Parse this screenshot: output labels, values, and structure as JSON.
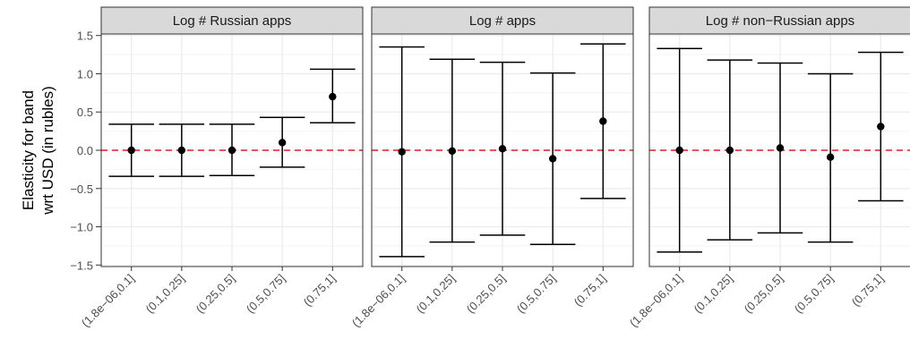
{
  "chart_data": {
    "type": "errorbar",
    "ylabel_lines": [
      "Elasticity for band",
      "wrt USD (in rubles)"
    ],
    "ylim": [
      -1.52,
      1.52
    ],
    "yticks": [
      -1.5,
      -1.0,
      -0.5,
      0.0,
      0.5,
      1.0,
      1.5
    ],
    "ytick_labels": [
      "−1.5",
      "−1.0",
      "−0.5",
      "0.0",
      "0.5",
      "1.0",
      "1.5"
    ],
    "categories": [
      "(1.8e−06,0.1]",
      "(0.1,0.25]",
      "(0.25,0.5]",
      "(0.5,0.75]",
      "(0.75,1]"
    ],
    "reference_line": {
      "y": 0,
      "color": "#e41a1c",
      "style": "dashed"
    },
    "grid": true,
    "panels": [
      {
        "title": "Log # Russian apps",
        "estimates": [
          0.0,
          0.0,
          0.0,
          0.1,
          0.7
        ],
        "lower": [
          -0.34,
          -0.34,
          -0.33,
          -0.22,
          0.36
        ],
        "upper": [
          0.34,
          0.34,
          0.34,
          0.43,
          1.06
        ]
      },
      {
        "title": "Log # apps",
        "estimates": [
          -0.02,
          -0.01,
          0.02,
          -0.11,
          0.38
        ],
        "lower": [
          -1.39,
          -1.2,
          -1.11,
          -1.23,
          -0.63
        ],
        "upper": [
          1.35,
          1.19,
          1.15,
          1.01,
          1.39
        ]
      },
      {
        "title": "Log # non−Russian apps",
        "estimates": [
          0.0,
          0.0,
          0.03,
          -0.09,
          0.31
        ],
        "lower": [
          -1.33,
          -1.17,
          -1.08,
          -1.2,
          -0.66
        ],
        "upper": [
          1.33,
          1.18,
          1.14,
          1.0,
          1.28
        ]
      }
    ]
  },
  "colors": {
    "panel_background": "#ebebeb",
    "strip_background": "#d9d9d9",
    "gridline": "#ebebeb",
    "border": "#333333",
    "point": "#000000",
    "reference_line": "#e41a1c"
  }
}
